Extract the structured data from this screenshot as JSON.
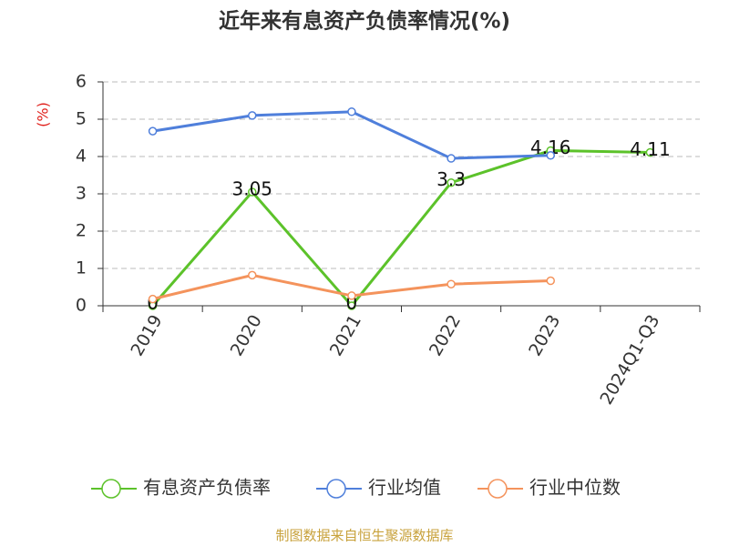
{
  "chart_data": {
    "type": "line",
    "title": "近年来有息资产负债率情况(%)",
    "ylabel": "(%)",
    "source": "制图数据来自恒生聚源数据库",
    "categories": [
      "2019",
      "2020",
      "2021",
      "2022",
      "2023",
      "2024Q1-Q3"
    ],
    "series": [
      {
        "name": "有息资产负债率",
        "color": "#5cc22a",
        "values": [
          0,
          3.05,
          0,
          3.3,
          4.16,
          4.11
        ],
        "data_labels": true
      },
      {
        "name": "行业均值",
        "color": "#4f7fdb",
        "values": [
          4.68,
          5.1,
          5.2,
          3.95,
          4.03,
          null
        ]
      },
      {
        "name": "行业中位数",
        "color": "#f4935c",
        "values": [
          0.18,
          0.82,
          0.27,
          0.58,
          0.67,
          null
        ]
      }
    ],
    "ylim": [
      0,
      6
    ],
    "yticks": [
      0,
      1,
      2,
      3,
      4,
      5,
      6
    ],
    "grid": true
  }
}
